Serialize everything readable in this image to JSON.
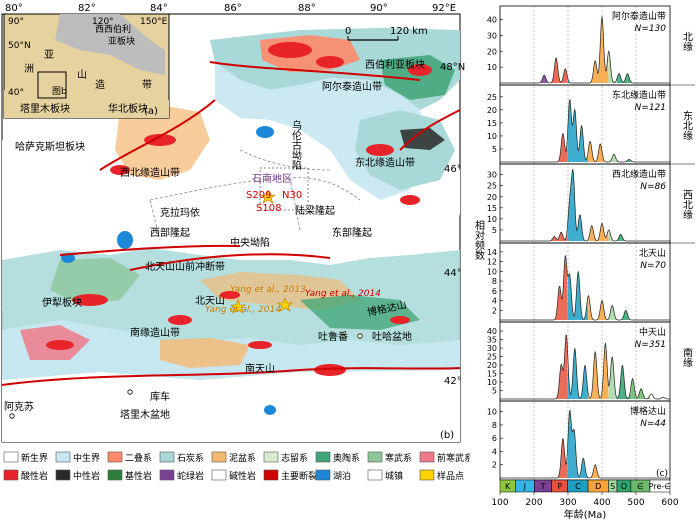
{
  "map": {
    "top_lon_labels": [
      "80°",
      "82°",
      "84°",
      "86°",
      "88°",
      "90°",
      "92°E"
    ],
    "lat_labels": [
      "48°N",
      "46°",
      "44°",
      "42°"
    ],
    "scale": {
      "zero": "0",
      "end": "120 km"
    },
    "panel_b": "(b)",
    "places": {
      "kazakh": "哈萨克斯坦板块",
      "siberia": "西伯利亚板块",
      "altai": "阿尔泰造山带",
      "junggar_nw": "西北缘造山带",
      "junggar_ne": "东北缘造山带",
      "karamay": "克拉玛依",
      "west_uplift": "西部隆起",
      "central": "中央坳陷",
      "east_uplift": "东部隆起",
      "luliang": "陆梁隆起",
      "wulungu": "乌伦古坳陷",
      "shinan": "石南地区",
      "north_tianshan_thrust": "北天山山前冲断带",
      "yili": "伊犁板块",
      "south_margin": "南缘造山带",
      "bogda": "博格达山",
      "turpan": "吐鲁番",
      "tuha": "吐哈盆地",
      "tarim_basin": "塔里木盆地",
      "aksu": "阿克苏",
      "kuqa": "库车",
      "north_tianshan": "北天山",
      "nantianshan": "南天山",
      "s_labels": [
        "S209",
        "N30",
        "S108"
      ],
      "refs": [
        "Yang et al., 2013",
        "Yang et al., 2014",
        "Yang et al., 2014"
      ]
    },
    "inset": {
      "panel": "(a)",
      "tarim": "塔里木板块",
      "huabei": "华北板块",
      "siberia": "西西伯利\n亚板块",
      "asia": "亚",
      "zao": "造",
      "shan": "山",
      "dai": "带",
      "zhou": "洲",
      "fig_b": "图b",
      "lat1": "50°N",
      "lat2": "40°",
      "lon1": "90°",
      "lon2": "120°",
      "lon3": "150°E"
    },
    "legend": [
      {
        "label": "新生界",
        "color": "#ffffff"
      },
      {
        "label": "中生界",
        "color": "#c6e6f0"
      },
      {
        "label": "二叠系",
        "color": "#ff8a6a"
      },
      {
        "label": "石炭系",
        "color": "#a8d8d8"
      },
      {
        "label": "泥盆系",
        "color": "#f5b870"
      },
      {
        "label": "志留系",
        "color": "#d9ecd0"
      },
      {
        "label": "奥陶系",
        "color": "#3fa476"
      },
      {
        "label": "寒武系",
        "color": "#8cc69a"
      },
      {
        "label": "前寒武系",
        "color": "#f07a8a"
      },
      {
        "label": "酸性岩",
        "color": "#e9232a"
      },
      {
        "label": "中性岩",
        "color": "#2a2a2a"
      },
      {
        "label": "基性岩",
        "color": "#2f7f3a"
      },
      {
        "label": "蛇绿岩",
        "color": "#7b3f94"
      },
      {
        "label": "碱性岩",
        "color": "#ffffff"
      },
      {
        "label": "主要断裂",
        "color": "#d00000"
      },
      {
        "label": "湖泊",
        "color": "#1e88d8"
      },
      {
        "label": "城镇",
        "color": "#ffffff"
      },
      {
        "label": "样品点",
        "color": "#ffd200"
      }
    ]
  },
  "chart_data": {
    "type": "area",
    "title": "",
    "xlabel": "年龄(Ma)",
    "ylabel": "相对频数",
    "xlim": [
      100,
      600
    ],
    "x_ticks": [
      100,
      200,
      300,
      400,
      500,
      600
    ],
    "panel_label": "(c)",
    "timescale": [
      "K",
      "J",
      "T",
      "P",
      "C",
      "D",
      "S",
      "O",
      "∈",
      "Pre-∈"
    ],
    "region_labels": [
      "北缘",
      "东北缘",
      "西北缘",
      "南缘"
    ],
    "panels": [
      {
        "name": "阿尔泰造山带",
        "n": "N=130",
        "yticks": [
          10,
          20,
          30,
          40
        ],
        "ymax": 46,
        "peaks": [
          [
            230,
            5
          ],
          [
            265,
            16
          ],
          [
            292,
            9
          ],
          [
            380,
            14
          ],
          [
            400,
            42
          ],
          [
            420,
            20
          ],
          [
            450,
            6
          ],
          [
            475,
            6
          ]
        ]
      },
      {
        "name": "东北缘造山带",
        "n": "N=121",
        "yticks": [
          5,
          10,
          15,
          20,
          25
        ],
        "ymax": 28,
        "peaks": [
          [
            285,
            11
          ],
          [
            305,
            24
          ],
          [
            320,
            20
          ],
          [
            340,
            14
          ],
          [
            365,
            8
          ],
          [
            395,
            7
          ],
          [
            435,
            3
          ],
          [
            480,
            1
          ]
        ]
      },
      {
        "name": "西北缘造山带",
        "n": "N=86",
        "yticks": [
          5,
          10,
          15,
          20,
          25,
          30
        ],
        "ymax": 33,
        "peaks": [
          [
            260,
            2
          ],
          [
            280,
            4
          ],
          [
            305,
            16
          ],
          [
            315,
            30
          ],
          [
            335,
            12
          ],
          [
            370,
            7
          ],
          [
            400,
            8
          ],
          [
            420,
            5
          ],
          [
            455,
            3
          ]
        ]
      },
      {
        "name": "北天山",
        "n": "N=70",
        "yticks": [
          2,
          4,
          6,
          8,
          10,
          12,
          14
        ],
        "ymax": 15,
        "peaks": [
          [
            275,
            7
          ],
          [
            292,
            13
          ],
          [
            305,
            9
          ],
          [
            330,
            10
          ],
          [
            360,
            5
          ],
          [
            400,
            4
          ],
          [
            430,
            3
          ],
          [
            470,
            2
          ]
        ]
      },
      {
        "name": "中天山",
        "n": "N=351",
        "yticks": [
          5,
          10,
          15,
          20,
          25,
          30,
          35,
          40
        ],
        "ymax": 43,
        "peaks": [
          [
            280,
            20
          ],
          [
            295,
            38
          ],
          [
            320,
            30
          ],
          [
            350,
            20
          ],
          [
            380,
            28
          ],
          [
            410,
            33
          ],
          [
            430,
            25
          ],
          [
            460,
            20
          ],
          [
            490,
            12
          ],
          [
            515,
            6
          ],
          [
            545,
            3
          ],
          [
            580,
            1
          ]
        ]
      },
      {
        "name": "博格达山",
        "n": "N=44",
        "yticks": [
          2,
          4,
          6,
          8,
          10
        ],
        "ymax": 11,
        "peaks": [
          [
            285,
            6
          ],
          [
            305,
            10
          ],
          [
            318,
            7
          ],
          [
            345,
            3
          ],
          [
            380,
            2
          ]
        ]
      }
    ]
  }
}
